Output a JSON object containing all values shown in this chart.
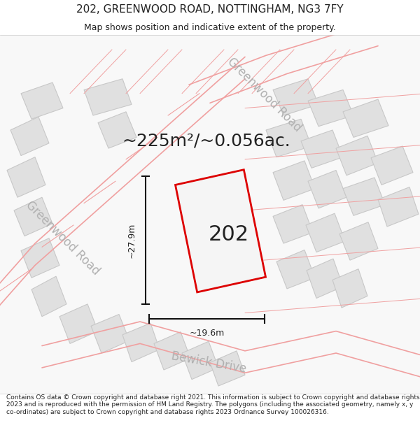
{
  "title_line1": "202, GREENWOOD ROAD, NOTTINGHAM, NG3 7FY",
  "title_line2": "Map shows position and indicative extent of the property.",
  "area_text": "~225m²/~0.056ac.",
  "property_number": "202",
  "dim_vertical": "~27.9m",
  "dim_horizontal": "~19.6m",
  "road_label_greenwood_left": "Greenwood Road",
  "road_label_greenwood_right": "Greenwood Road",
  "road_label_bewick": "Bewick Drive",
  "footer_text": "Contains OS data © Crown copyright and database right 2021. This information is subject to Crown copyright and database rights 2023 and is reproduced with the permission of HM Land Registry. The polygons (including the associated geometry, namely x, y co-ordinates) are subject to Crown copyright and database rights 2023 Ordnance Survey 100026316.",
  "map_bg_color": "#ffffff",
  "building_fill": "#e0e0e0",
  "building_edge": "#c8c8c8",
  "road_line_color": "#f0a0a0",
  "property_edge_color": "#dd0000",
  "dim_line_color": "#111111",
  "text_color": "#222222",
  "road_text_color": "#b0b0b0",
  "title_fontsize": 11,
  "subtitle_fontsize": 9,
  "area_fontsize": 18,
  "property_label_fontsize": 22,
  "dim_fontsize": 9,
  "road_fontsize": 12,
  "footer_fontsize": 6.5
}
